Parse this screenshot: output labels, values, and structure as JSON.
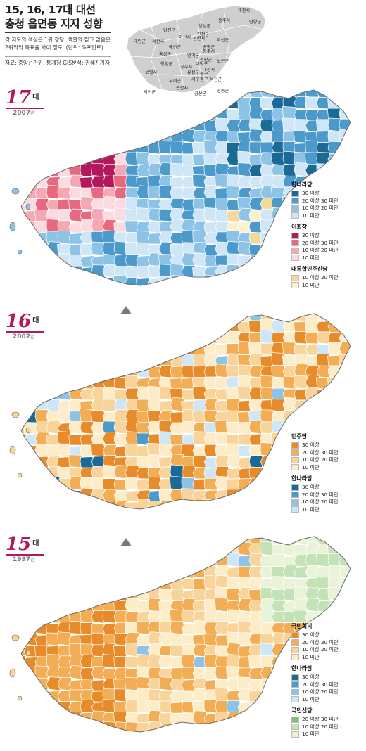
{
  "header": {
    "title_line1": "15, 16, 17대 대선",
    "title_line2": "충청 읍면동 지지 성향",
    "desc_line1": "각 지도의 색상은 1위 정당, 색깔의 짙고 옅음은",
    "desc_line2": "2위와의 득표율 차이 정도. (단위: %포인트)",
    "source": "자료: 중앙선관위, 통계청 GIS분석: 권혜진기자"
  },
  "locator_map": {
    "regions": [
      "제천시",
      "충주시",
      "단양군",
      "음성군",
      "당진군",
      "진천군",
      "괴산군",
      "서산시",
      "아산시",
      "천안시",
      "태안군",
      "예산군",
      "증평군",
      "홍성군",
      "청원군",
      "연기군",
      "청주시",
      "보은군",
      "청양군",
      "공주시",
      "대전시",
      "유성구",
      "동구",
      "대덕구",
      "보령시",
      "서구",
      "중구",
      "부여군",
      "옥천군",
      "논산시",
      "서천군",
      "금산군",
      "영동군"
    ]
  },
  "panels": [
    {
      "era": "17",
      "era_suffix": "대",
      "year": "2007",
      "year_suffix": "년",
      "legend": [
        {
          "party": "한나라당",
          "items": [
            {
              "label": "30 이상",
              "color": "#1b6a96"
            },
            {
              "label": "20 이상 30 미만",
              "color": "#4b9acb"
            },
            {
              "label": "10 이상 20 미만",
              "color": "#8cc3e6"
            },
            {
              "label": "10 미만",
              "color": "#cfe6f6"
            }
          ]
        },
        {
          "party": "이회창",
          "items": [
            {
              "label": "30 이상",
              "color": "#b4185c"
            },
            {
              "label": "20 이상 30 미만",
              "color": "#e8697f"
            },
            {
              "label": "10 이상 20 미만",
              "color": "#f3a8b4"
            },
            {
              "label": "10 미만",
              "color": "#fbdbe0"
            }
          ]
        },
        {
          "party": "대통합민주신당",
          "items": [
            {
              "label": "10 이상 20 미만",
              "color": "#f4d89a"
            },
            {
              "label": "10 미만",
              "color": "#fcf1cf"
            }
          ]
        }
      ]
    },
    {
      "era": "16",
      "era_suffix": "대",
      "year": "2002",
      "year_suffix": "년",
      "legend": [
        {
          "party": "민주당",
          "items": [
            {
              "label": "30 이상",
              "color": "#e88b2a"
            },
            {
              "label": "20 이상 30 미만",
              "color": "#f2ad55"
            },
            {
              "label": "10 이상 20 미만",
              "color": "#f8d39a"
            },
            {
              "label": "10 미만",
              "color": "#fdecc8"
            }
          ]
        },
        {
          "party": "한나라당",
          "items": [
            {
              "label": "30 이상",
              "color": "#1b6a96"
            },
            {
              "label": "20 이상 30 미만",
              "color": "#4b9acb"
            },
            {
              "label": "10 이상 20 미만",
              "color": "#8cc3e6"
            },
            {
              "label": "10 미만",
              "color": "#cfe6f6"
            }
          ]
        }
      ]
    },
    {
      "era": "15",
      "era_suffix": "대",
      "year": "1997",
      "year_suffix": "년",
      "legend": [
        {
          "party": "국민회의",
          "items": [
            {
              "label": "30 이상",
              "color": "#e88b2a"
            },
            {
              "label": "20 이상 30 미만",
              "color": "#f2ad55"
            },
            {
              "label": "10 이상 20 미만",
              "color": "#f8d39a"
            },
            {
              "label": "10 미만",
              "color": "#fdecc8"
            }
          ]
        },
        {
          "party": "한나라당",
          "items": [
            {
              "label": "30 이상",
              "color": "#1b6a96"
            },
            {
              "label": "20 이상 30 미만",
              "color": "#4b9acb"
            },
            {
              "label": "10 이상 20 미만",
              "color": "#8cc3e6"
            },
            {
              "label": "10 미만",
              "color": "#cfe6f6"
            }
          ]
        },
        {
          "party": "국민신당",
          "items": [
            {
              "label": "20 이상 30 미만",
              "color": "#7fbf7a"
            },
            {
              "label": "10 이상 20 미만",
              "color": "#c3e2b5"
            },
            {
              "label": "10 미만",
              "color": "#e8f3d8"
            }
          ]
        }
      ]
    }
  ]
}
